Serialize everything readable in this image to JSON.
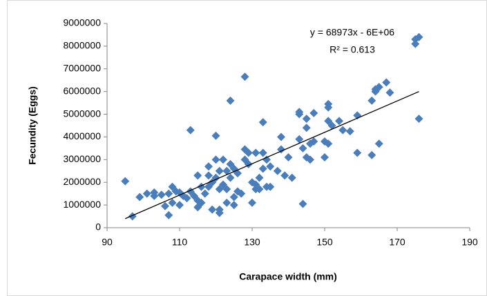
{
  "chart_data": {
    "type": "scatter",
    "x_label": "Carapace width (mm)",
    "y_label": "Fecundity (Eggs)",
    "annotations": [
      "y = 68973x - 6E+06",
      "R² = 0.613"
    ],
    "xlim": [
      90,
      190
    ],
    "xticks": [
      90,
      110,
      130,
      150,
      170,
      190
    ],
    "ylim": [
      0,
      9000000
    ],
    "yticks": [
      0,
      1000000,
      2000000,
      3000000,
      4000000,
      5000000,
      6000000,
      7000000,
      8000000,
      9000000
    ],
    "series": [
      {
        "color": "#4a7ebb",
        "x": [
          95,
          97,
          99,
          101,
          103,
          103,
          105,
          106,
          107,
          107,
          108,
          108,
          109,
          110,
          110,
          111,
          112,
          113,
          113,
          114,
          115,
          115,
          115,
          116,
          116,
          117,
          118,
          118,
          118,
          119,
          119,
          120,
          120,
          120,
          121,
          121,
          121,
          121,
          122,
          122,
          123,
          123,
          123,
          124,
          124,
          124,
          125,
          125,
          125,
          126,
          126,
          127,
          128,
          128,
          128,
          129,
          129,
          130,
          130,
          131,
          131,
          131,
          132,
          132,
          133,
          133,
          133,
          134,
          134,
          135,
          135,
          137,
          138,
          138,
          139,
          140,
          141,
          143,
          143,
          143,
          144,
          144,
          145,
          145,
          145,
          146,
          146,
          147,
          147,
          150,
          150,
          151,
          151,
          151,
          151,
          152,
          154,
          155,
          157,
          159,
          159,
          163,
          163,
          164,
          164,
          165,
          165,
          167,
          168,
          175,
          175,
          176,
          176
        ],
        "values": [
          2050000,
          500000,
          1350000,
          1500000,
          1550000,
          1400000,
          1450000,
          950000,
          1500000,
          550000,
          1100000,
          1800000,
          1600000,
          1000000,
          1550000,
          1400000,
          1300000,
          4300000,
          1600000,
          1400000,
          900000,
          1200000,
          2300000,
          1800000,
          1100000,
          1500000,
          1800000,
          2700000,
          2300000,
          800000,
          2000000,
          4050000,
          3000000,
          2200000,
          800000,
          1700000,
          650000,
          2500000,
          3000000,
          1900000,
          1100000,
          1700000,
          2500000,
          5600000,
          2800000,
          2200000,
          1350000,
          1000000,
          2600000,
          1600000,
          2400000,
          1500000,
          6650000,
          3450000,
          3000000,
          3300000,
          2800000,
          1100000,
          2000000,
          1700000,
          1900000,
          3300000,
          2200000,
          1700000,
          4650000,
          3300000,
          2600000,
          1800000,
          3000000,
          2700000,
          1800000,
          2500000,
          3450000,
          4000000,
          2300000,
          3100000,
          2200000,
          5000000,
          3900000,
          5100000,
          3500000,
          1050000,
          4800000,
          4400000,
          3100000,
          3700000,
          3000000,
          5050000,
          3800000,
          3100000,
          3800000,
          5300000,
          5450000,
          4700000,
          3700000,
          4500000,
          4700000,
          4300000,
          4250000,
          3300000,
          4950000,
          3200000,
          5600000,
          6000000,
          6100000,
          6200000,
          3700000,
          6400000,
          5950000,
          8100000,
          8300000,
          8400000,
          4800000
        ]
      }
    ],
    "trendline": {
      "color": "#000000",
      "x": [
        95,
        176
      ],
      "values": [
        400000,
        6000000
      ]
    }
  }
}
